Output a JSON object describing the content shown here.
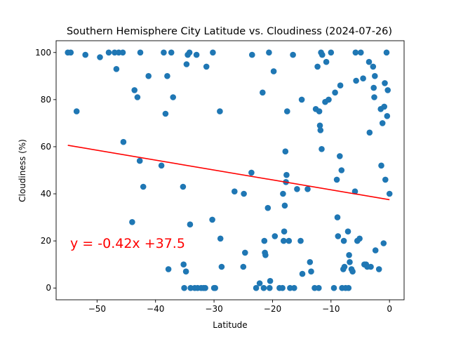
{
  "chart_data": {
    "type": "scatter",
    "title": "Southern Hemisphere City Latitude vs. Cloudiness (2024-07-26)",
    "xlabel": "Latitude",
    "ylabel": "Cloudiness (%)",
    "xlim": [
      -57,
      2.5
    ],
    "ylim": [
      -5,
      105
    ],
    "xticks": [
      -50,
      -40,
      -30,
      -20,
      -10,
      0
    ],
    "yticks": [
      0,
      20,
      40,
      60,
      80,
      100
    ],
    "grid": false,
    "marker_color": "#1f77b4",
    "regression": {
      "equation": "y = -0.42x +37.5",
      "slope": -0.42,
      "intercept": 37.5,
      "x_range": [
        -55,
        0
      ],
      "color": "#ff0000"
    },
    "points": [
      [
        -55,
        100
      ],
      [
        -54.5,
        100
      ],
      [
        -53.5,
        75
      ],
      [
        -52,
        99
      ],
      [
        -49.5,
        98
      ],
      [
        -48,
        100
      ],
      [
        -47,
        100
      ],
      [
        -46.7,
        93
      ],
      [
        -46.3,
        100
      ],
      [
        -45.6,
        100
      ],
      [
        -45.5,
        62
      ],
      [
        -44,
        28
      ],
      [
        -43.6,
        84
      ],
      [
        -43.1,
        81
      ],
      [
        -42.7,
        54
      ],
      [
        -42.6,
        100
      ],
      [
        -42.1,
        43
      ],
      [
        -41.2,
        90
      ],
      [
        -39,
        52
      ],
      [
        -38.6,
        100
      ],
      [
        -38.3,
        74
      ],
      [
        -38,
        90
      ],
      [
        -37.8,
        8
      ],
      [
        -37.3,
        100
      ],
      [
        -37,
        81
      ],
      [
        -35.3,
        43
      ],
      [
        -35.2,
        10
      ],
      [
        -35.1,
        0
      ],
      [
        -34.8,
        7
      ],
      [
        -34.7,
        95
      ],
      [
        -34.5,
        99
      ],
      [
        -34.2,
        100
      ],
      [
        -34.1,
        27
      ],
      [
        -34,
        0
      ],
      [
        -33.3,
        0
      ],
      [
        -33,
        99
      ],
      [
        -32.8,
        0
      ],
      [
        -32.2,
        0
      ],
      [
        -31.8,
        0
      ],
      [
        -31.5,
        0
      ],
      [
        -31.3,
        94
      ],
      [
        -30.3,
        29
      ],
      [
        -30.2,
        100
      ],
      [
        -30,
        0
      ],
      [
        -29.8,
        0
      ],
      [
        -29,
        75
      ],
      [
        -28.9,
        21
      ],
      [
        -28.7,
        9
      ],
      [
        -26.5,
        41
      ],
      [
        -25,
        9
      ],
      [
        -24.9,
        40
      ],
      [
        -24.7,
        15
      ],
      [
        -23.6,
        49
      ],
      [
        -23.5,
        99
      ],
      [
        -22.8,
        0
      ],
      [
        -22.2,
        2
      ],
      [
        -21.7,
        83
      ],
      [
        -21.5,
        0
      ],
      [
        -21.4,
        20
      ],
      [
        -21.3,
        15
      ],
      [
        -21.2,
        14
      ],
      [
        -20.8,
        34
      ],
      [
        -20.6,
        100
      ],
      [
        -20.5,
        0
      ],
      [
        -20.4,
        3
      ],
      [
        -19.8,
        92
      ],
      [
        -19.6,
        22
      ],
      [
        -18.8,
        0
      ],
      [
        -18.3,
        0
      ],
      [
        -18.2,
        40
      ],
      [
        -18.1,
        20
      ],
      [
        -18,
        24
      ],
      [
        -17.9,
        35
      ],
      [
        -17.8,
        58
      ],
      [
        -17.7,
        45
      ],
      [
        -17.6,
        48
      ],
      [
        -17.5,
        75
      ],
      [
        -17.2,
        20
      ],
      [
        -17,
        0
      ],
      [
        -16.5,
        99
      ],
      [
        -16.3,
        0
      ],
      [
        -15.8,
        42
      ],
      [
        -15.2,
        20
      ],
      [
        -15,
        80
      ],
      [
        -14.9,
        6
      ],
      [
        -14,
        42
      ],
      [
        -13.6,
        11
      ],
      [
        -13.4,
        7
      ],
      [
        -12.8,
        0
      ],
      [
        -12.6,
        76
      ],
      [
        -12.3,
        94
      ],
      [
        -12.1,
        0
      ],
      [
        -12,
        75
      ],
      [
        -11.9,
        69
      ],
      [
        -11.8,
        67
      ],
      [
        -11.7,
        100
      ],
      [
        -11.6,
        59
      ],
      [
        -11.5,
        99
      ],
      [
        -11,
        79
      ],
      [
        -10.8,
        96
      ],
      [
        -10.4,
        80
      ],
      [
        -10,
        100
      ],
      [
        -9.5,
        0
      ],
      [
        -9.3,
        83
      ],
      [
        -9,
        46
      ],
      [
        -8.9,
        30
      ],
      [
        -8.8,
        22
      ],
      [
        -8.5,
        56
      ],
      [
        -8.4,
        86
      ],
      [
        -8.2,
        50
      ],
      [
        -8.1,
        0
      ],
      [
        -7.9,
        8
      ],
      [
        -7.8,
        20
      ],
      [
        -7.7,
        9
      ],
      [
        -7.5,
        0
      ],
      [
        -7.1,
        24
      ],
      [
        -7,
        0
      ],
      [
        -6.9,
        14
      ],
      [
        -6.8,
        11
      ],
      [
        -6.5,
        8
      ],
      [
        -6.3,
        7
      ],
      [
        -5.9,
        41
      ],
      [
        -5.8,
        100
      ],
      [
        -5.7,
        88
      ],
      [
        -5.5,
        20
      ],
      [
        -5.1,
        21
      ],
      [
        -4.9,
        100
      ],
      [
        -4.5,
        89
      ],
      [
        -4.3,
        10
      ],
      [
        -4,
        10
      ],
      [
        -3.8,
        9
      ],
      [
        -3.5,
        96
      ],
      [
        -3.4,
        66
      ],
      [
        -3.2,
        9
      ],
      [
        -2.8,
        94
      ],
      [
        -2.7,
        85
      ],
      [
        -2.6,
        81
      ],
      [
        -2.5,
        90
      ],
      [
        -2.4,
        16
      ],
      [
        -1.8,
        8
      ],
      [
        -1.5,
        76
      ],
      [
        -1.4,
        52
      ],
      [
        -1.2,
        70
      ],
      [
        -1,
        19
      ],
      [
        -0.9,
        77
      ],
      [
        -0.8,
        87
      ],
      [
        -0.7,
        46
      ],
      [
        -0.5,
        100
      ],
      [
        -0.4,
        73
      ],
      [
        -0.3,
        84
      ],
      [
        0,
        40
      ]
    ]
  }
}
